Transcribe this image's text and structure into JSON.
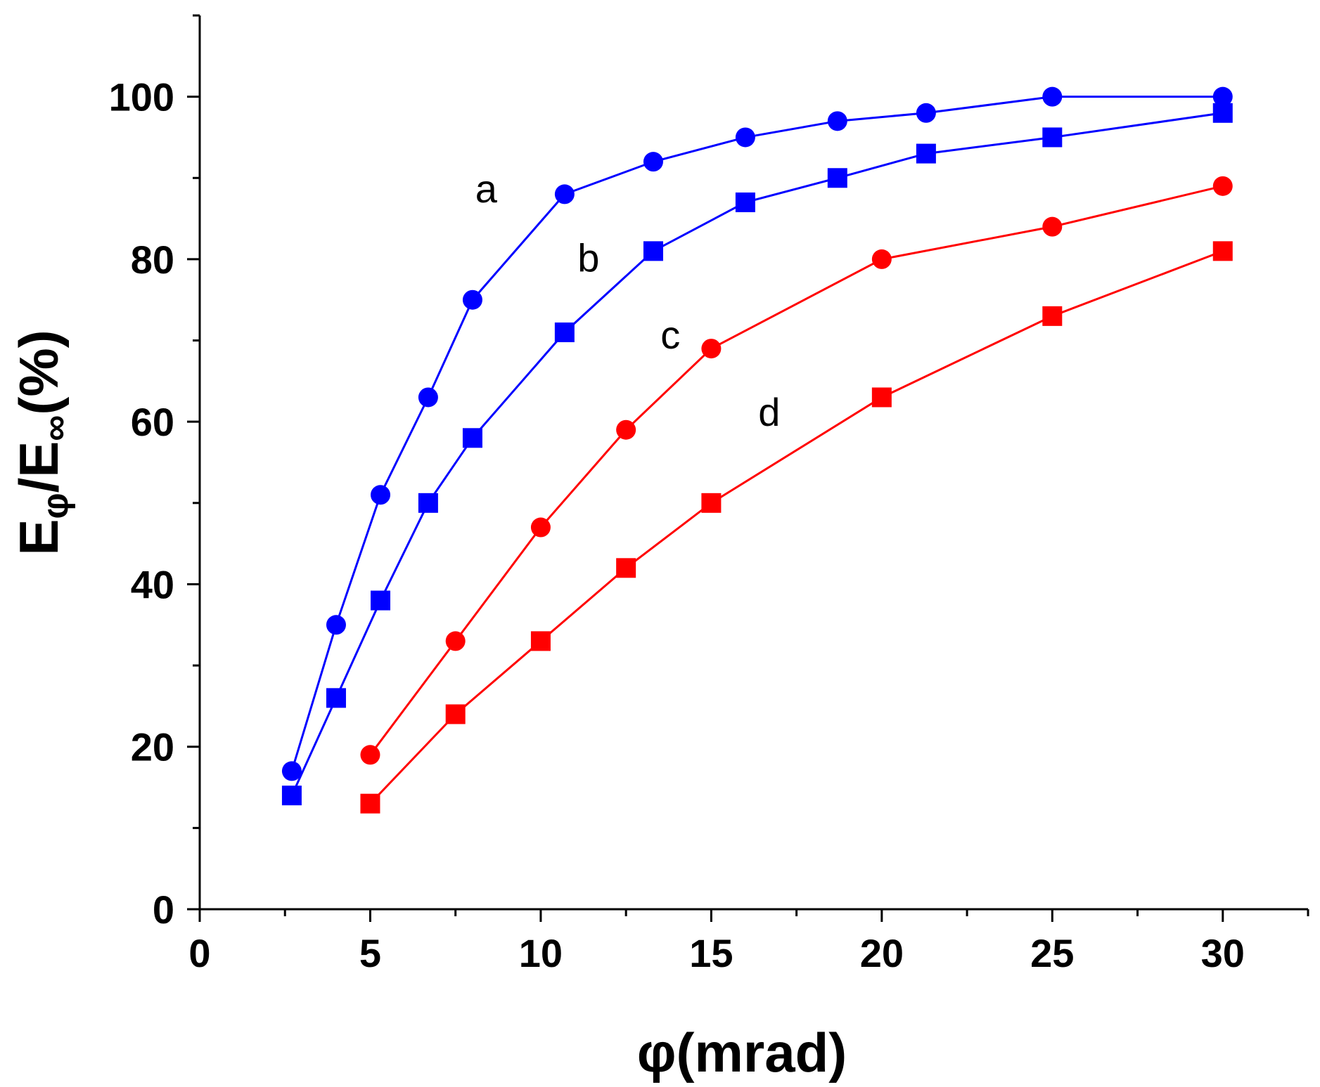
{
  "chart_data": {
    "type": "line",
    "title": "",
    "xlabel": "φ(mrad)",
    "ylabel": {
      "E": "E",
      "phi_sub": "φ",
      "slash_E": "/E",
      "inf_sub": "∞",
      "unit": "(%)"
    },
    "xlim": [
      0,
      32.5
    ],
    "ylim": [
      0,
      110
    ],
    "x_ticks": [
      0,
      5,
      10,
      15,
      20,
      25,
      30
    ],
    "y_ticks": [
      0,
      20,
      40,
      60,
      80,
      100
    ],
    "x_minor_ticks": [
      2.5,
      7.5,
      12.5,
      17.5,
      22.5,
      27.5,
      32.5
    ],
    "y_minor_ticks": [
      10,
      30,
      50,
      70,
      90,
      110
    ],
    "grid": false,
    "series": [
      {
        "name": "a",
        "color": "#0000ff",
        "marker": "circle",
        "label_at": [
          8.4,
          87
        ],
        "x": [
          2.7,
          4.0,
          5.3,
          6.7,
          8.0,
          10.7,
          13.3,
          16.0,
          18.7,
          21.3,
          25.0,
          30.0
        ],
        "y": [
          17,
          35,
          51,
          63,
          75,
          88,
          92,
          95,
          97,
          98,
          100,
          100
        ]
      },
      {
        "name": "b",
        "color": "#0000ff",
        "marker": "square",
        "label_at": [
          11.4,
          78.5
        ],
        "x": [
          2.7,
          4.0,
          5.3,
          6.7,
          8.0,
          10.7,
          13.3,
          16.0,
          18.7,
          21.3,
          25.0,
          30.0
        ],
        "y": [
          14,
          26,
          38,
          50,
          58,
          71,
          81,
          87,
          90,
          93,
          95,
          98
        ]
      },
      {
        "name": "c",
        "color": "#ff0000",
        "marker": "circle",
        "label_at": [
          13.8,
          69
        ],
        "x": [
          5.0,
          7.5,
          10.0,
          12.5,
          15.0,
          20.0,
          25.0,
          30.0
        ],
        "y": [
          19,
          33,
          47,
          59,
          69,
          80,
          84,
          89
        ]
      },
      {
        "name": "d",
        "color": "#ff0000",
        "marker": "square",
        "label_at": [
          16.7,
          59.5
        ],
        "x": [
          5.0,
          7.5,
          10.0,
          12.5,
          15.0,
          20.0,
          25.0,
          30.0
        ],
        "y": [
          13,
          24,
          33,
          42,
          50,
          63,
          73,
          81
        ]
      }
    ]
  }
}
